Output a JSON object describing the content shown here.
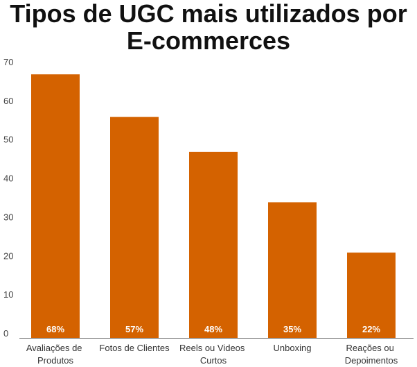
{
  "chart_data": {
    "type": "bar",
    "title": "Tipos de UGC mais utilizados por E-commerces",
    "categories": [
      "Avaliações de Produtos",
      "Fotos de Clientes",
      "Reels ou Videos Curtos",
      "Unboxing",
      "Reações ou Depoimentos"
    ],
    "values": [
      68,
      57,
      48,
      35,
      22
    ],
    "data_labels": [
      "68%",
      "57%",
      "48%",
      "35%",
      "22%"
    ],
    "yticks": [
      0,
      10,
      20,
      30,
      40,
      50,
      60,
      70
    ],
    "ylim": [
      0,
      70
    ],
    "grid": false,
    "legend": "none",
    "bar_color": "#D46200",
    "data_label_color": "#FFFFFF"
  }
}
